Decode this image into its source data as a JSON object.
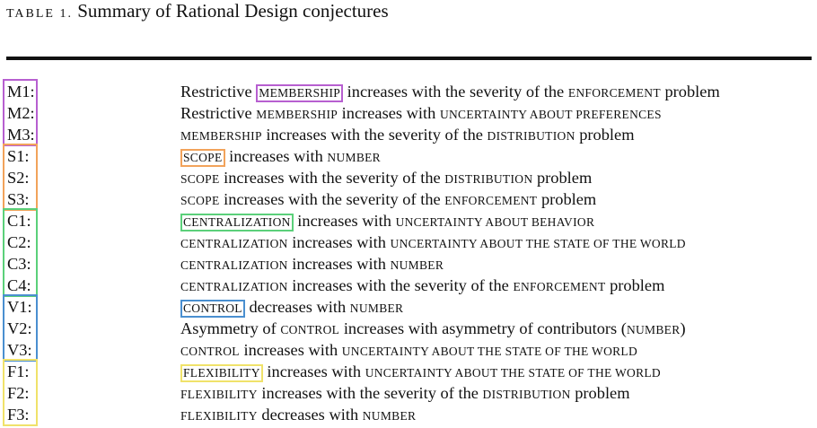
{
  "caption": {
    "label": "TABLE 1.",
    "title": "Summary of Rational Design conjectures"
  },
  "colors": {
    "membership": "#b75fd0",
    "scope": "#f2a35b",
    "centralization": "#5bd07a",
    "control": "#4a8fd0",
    "flexibility": "#f0e26a"
  },
  "rows": [
    {
      "id": "M1:",
      "parts": [
        {
          "t": "Restrictive "
        },
        {
          "t": "MEMBERSHIP",
          "sc": true,
          "box": "membership"
        },
        {
          "t": " increases with the severity of the "
        },
        {
          "t": "ENFORCEMENT",
          "sc": true
        },
        {
          "t": " problem"
        }
      ]
    },
    {
      "id": "M2:",
      "parts": [
        {
          "t": "Restrictive "
        },
        {
          "t": "MEMBERSHIP",
          "sc": true
        },
        {
          "t": " increases with "
        },
        {
          "t": "UNCERTAINTY ABOUT PREFERENCES",
          "sc": true
        }
      ]
    },
    {
      "id": "M3:",
      "parts": [
        {
          "t": "MEMBERSHIP",
          "sc": true
        },
        {
          "t": " increases with the severity of the "
        },
        {
          "t": "DISTRIBUTION",
          "sc": true
        },
        {
          "t": " problem"
        }
      ]
    },
    {
      "id": "S1:",
      "parts": [
        {
          "t": "SCOPE",
          "sc": true,
          "box": "scope"
        },
        {
          "t": " increases with "
        },
        {
          "t": "NUMBER",
          "sc": true
        }
      ]
    },
    {
      "id": "S2:",
      "parts": [
        {
          "t": "SCOPE",
          "sc": true
        },
        {
          "t": " increases with the severity of the "
        },
        {
          "t": "DISTRIBUTION",
          "sc": true
        },
        {
          "t": " problem"
        }
      ]
    },
    {
      "id": "S3:",
      "parts": [
        {
          "t": "SCOPE",
          "sc": true
        },
        {
          "t": " increases with the severity of the "
        },
        {
          "t": "ENFORCEMENT",
          "sc": true
        },
        {
          "t": " problem"
        }
      ]
    },
    {
      "id": "C1:",
      "parts": [
        {
          "t": "CENTRALIZATION",
          "sc": true,
          "box": "centralization"
        },
        {
          "t": " increases with "
        },
        {
          "t": "UNCERTAINTY ABOUT BEHAVIOR",
          "sc": true
        }
      ]
    },
    {
      "id": "C2:",
      "parts": [
        {
          "t": "CENTRALIZATION",
          "sc": true
        },
        {
          "t": " increases with "
        },
        {
          "t": "UNCERTAINTY ABOUT THE STATE OF THE WORLD",
          "sc": true
        }
      ]
    },
    {
      "id": "C3:",
      "parts": [
        {
          "t": "CENTRALIZATION",
          "sc": true
        },
        {
          "t": " increases with "
        },
        {
          "t": "NUMBER",
          "sc": true
        }
      ]
    },
    {
      "id": "C4:",
      "parts": [
        {
          "t": "CENTRALIZATION",
          "sc": true
        },
        {
          "t": " increases with the severity of the "
        },
        {
          "t": "ENFORCEMENT",
          "sc": true
        },
        {
          "t": " problem"
        }
      ]
    },
    {
      "id": "V1:",
      "parts": [
        {
          "t": "CONTROL",
          "sc": true,
          "box": "control"
        },
        {
          "t": " decreases with "
        },
        {
          "t": "NUMBER",
          "sc": true
        }
      ]
    },
    {
      "id": "V2:",
      "parts": [
        {
          "t": "Asymmetry of "
        },
        {
          "t": "CONTROL",
          "sc": true
        },
        {
          "t": " increases with asymmetry of contributors ("
        },
        {
          "t": "NUMBER",
          "sc": true
        },
        {
          "t": ")"
        }
      ]
    },
    {
      "id": "V3:",
      "parts": [
        {
          "t": "CONTROL",
          "sc": true
        },
        {
          "t": " increases with "
        },
        {
          "t": "UNCERTAINTY ABOUT THE STATE OF THE WORLD",
          "sc": true
        }
      ]
    },
    {
      "id": "F1:",
      "parts": [
        {
          "t": "FLEXIBILITY",
          "sc": true,
          "box": "flexibility"
        },
        {
          "t": " increases with "
        },
        {
          "t": "UNCERTAINTY ABOUT THE STATE OF THE WORLD",
          "sc": true
        }
      ]
    },
    {
      "id": "F2:",
      "parts": [
        {
          "t": "FLEXIBILITY",
          "sc": true
        },
        {
          "t": " increases with the severity of the "
        },
        {
          "t": "DISTRIBUTION",
          "sc": true
        },
        {
          "t": " problem"
        }
      ]
    },
    {
      "id": "F3:",
      "parts": [
        {
          "t": "FLEXIBILITY",
          "sc": true
        },
        {
          "t": " decreases with "
        },
        {
          "t": "NUMBER",
          "sc": true
        }
      ]
    }
  ],
  "groups": [
    {
      "name": "membership",
      "first": 0,
      "last": 2
    },
    {
      "name": "scope",
      "first": 3,
      "last": 5
    },
    {
      "name": "centralization",
      "first": 6,
      "last": 9
    },
    {
      "name": "control",
      "first": 10,
      "last": 12
    },
    {
      "name": "flexibility",
      "first": 13,
      "last": 15
    }
  ]
}
